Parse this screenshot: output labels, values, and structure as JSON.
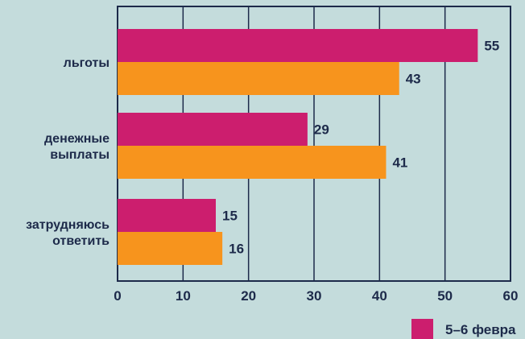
{
  "chart_data": {
    "type": "bar",
    "orientation": "horizontal",
    "categories": [
      [
        "льготы"
      ],
      [
        "денежные",
        "выплаты"
      ],
      [
        "затрудняюсь",
        "ответить"
      ]
    ],
    "series": [
      {
        "name": "5–6 февра",
        "color": "#cc1e6e",
        "values": [
          55,
          29,
          15
        ]
      },
      {
        "name": "",
        "color": "#f7941d",
        "values": [
          43,
          41,
          16
        ]
      }
    ],
    "xlim": [
      0,
      60
    ],
    "xticks": [
      0,
      10,
      20,
      30,
      40,
      50,
      60
    ],
    "grid": true,
    "legend_position": "bottom-right"
  },
  "colors": {
    "background": "#c4dcdc",
    "grid": "#1d2a4a",
    "text": "#1d2a4a"
  }
}
